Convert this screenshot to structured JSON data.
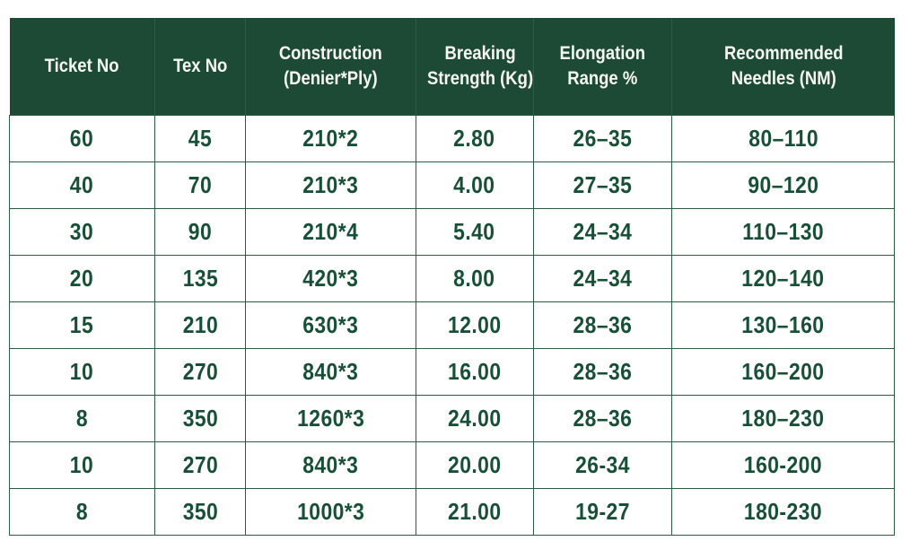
{
  "table": {
    "name": "thread-specification-table",
    "headers": [
      {
        "id": "ticket-no",
        "lines": [
          "Ticket No"
        ]
      },
      {
        "id": "tex-no",
        "lines": [
          "Tex No"
        ]
      },
      {
        "id": "construction",
        "lines": [
          "Construction",
          "(Denier*Ply)"
        ]
      },
      {
        "id": "breaking-strength",
        "lines": [
          "Breaking",
          "Strength (Kg)"
        ]
      },
      {
        "id": "elongation-range",
        "lines": [
          "Elongation",
          "Range %"
        ]
      },
      {
        "id": "recommended-needles",
        "lines": [
          "Recommended",
          "Needles (NM)"
        ]
      }
    ],
    "rows": [
      [
        "60",
        "45",
        "210*2",
        "2.80",
        "26–35",
        "80–110"
      ],
      [
        "40",
        "70",
        "210*3",
        "4.00",
        "27–35",
        "90–120"
      ],
      [
        "30",
        "90",
        "210*4",
        "5.40",
        "24–34",
        "110–130"
      ],
      [
        "20",
        "135",
        "420*3",
        "8.00",
        "24–34",
        "120–140"
      ],
      [
        "15",
        "210",
        "630*3",
        "12.00",
        "28–36",
        "130–160"
      ],
      [
        "10",
        "270",
        "840*3",
        "16.00",
        "28–36",
        "160–200"
      ],
      [
        "8",
        "350",
        "1260*3",
        "24.00",
        "28–36",
        "180–230"
      ],
      [
        "10",
        "270",
        "840*3",
        "20.00",
        "26-34",
        "160-200"
      ],
      [
        "8",
        "350",
        "1000*3",
        "21.00",
        "19-27",
        "180-230"
      ]
    ]
  },
  "colors": {
    "header_bg": "#1c4a34",
    "header_text": "#f6f6f2",
    "body_text": "#175037",
    "grid_border": "#2c5a43",
    "header_divider": "#2e5b43",
    "row_bg": "#ffffff",
    "page_bg": "#ffffff"
  }
}
